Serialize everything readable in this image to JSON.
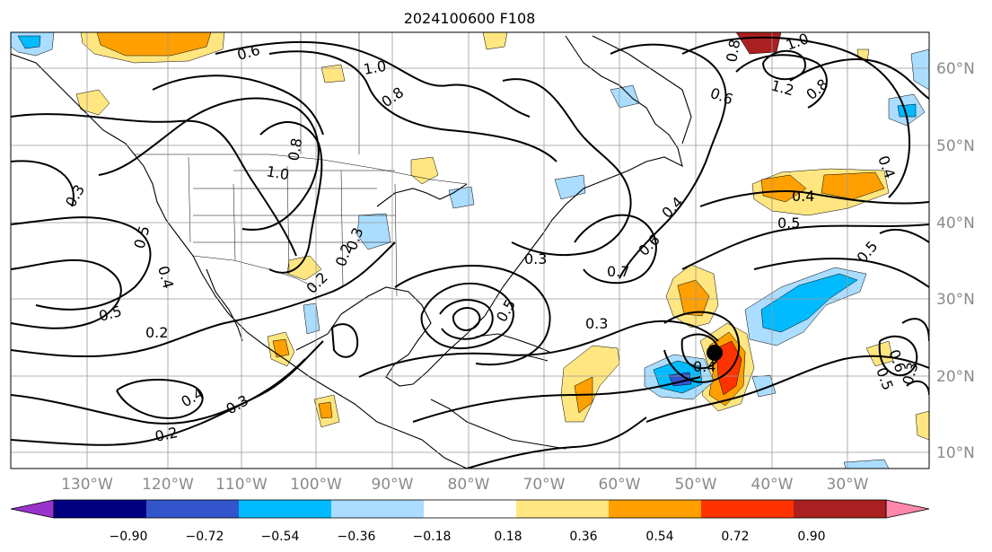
{
  "title": "2024100600 F108",
  "map": {
    "lon_labels": [
      "130°W",
      "120°W",
      "110°W",
      "100°W",
      "90°W",
      "80°W",
      "70°W",
      "60°W",
      "50°W",
      "40°W",
      "30°W"
    ],
    "lat_labels": [
      "60°N",
      "50°N",
      "40°N",
      "30°N",
      "20°N",
      "10°N"
    ],
    "contour_labels": [
      "0.6",
      "1.0",
      "0.8",
      "0.8",
      "1.0",
      "0.3",
      "0.5",
      "0.4",
      "0.2",
      "0.2",
      "0.3",
      "0.5",
      "0.2",
      "0.4",
      "0.3",
      "0.2",
      "0.5",
      "0.3",
      "0.7",
      "0.6",
      "0.4",
      "0.3",
      "0.4",
      "0.4",
      "0.5",
      "0.5",
      "0.8",
      "1.0",
      "1.2",
      "0.8",
      "0.6",
      "0.4",
      "0.5",
      "0.6",
      "0.3"
    ]
  },
  "colorbar": {
    "colors": [
      "#9933cc",
      "#000080",
      "#3355cc",
      "#00bbff",
      "#aaddff",
      "#ffffff",
      "#ffe680",
      "#ffa000",
      "#ff3300",
      "#aa2020",
      "#ff88aa"
    ],
    "tick_labels": [
      "−0.90",
      "−0.72",
      "−0.54",
      "−0.36",
      "−0.18",
      "0.18",
      "0.36",
      "0.54",
      "0.72",
      "0.90"
    ]
  },
  "colors": {
    "positive_light": "#ffe680",
    "positive_mid": "#ffa000",
    "positive_strong": "#ff3300",
    "negative_light": "#aaddff",
    "negative_mid": "#00bbff",
    "negative_strong": "#3355cc",
    "grid": "#999999"
  }
}
